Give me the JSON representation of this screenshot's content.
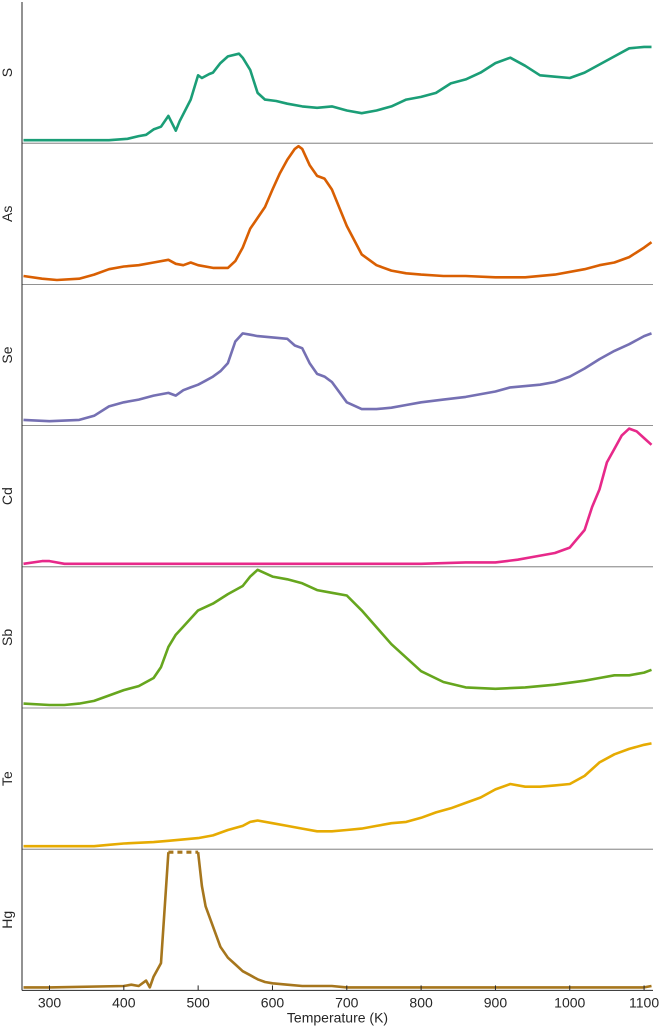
{
  "chart_data": {
    "type": "line",
    "xlabel": "Temperature (K)",
    "xlim": [
      263,
      1112
    ],
    "xticks": [
      300,
      400,
      500,
      600,
      700,
      800,
      900,
      1000,
      1100
    ],
    "xtick_labels": [
      "300",
      "400",
      "500",
      "600",
      "700",
      "800",
      "900",
      "1000",
      "1100"
    ],
    "normalized": true,
    "series": [
      {
        "name": "S",
        "color": "#1b9e77",
        "x": [
          265,
          300,
          380,
          405,
          420,
          430,
          440,
          450,
          460,
          470,
          475,
          490,
          500,
          505,
          515,
          520,
          530,
          540,
          555,
          560,
          570,
          580,
          590,
          605,
          620,
          640,
          660,
          680,
          700,
          720,
          740,
          760,
          780,
          800,
          820,
          840,
          860,
          880,
          900,
          920,
          940,
          960,
          980,
          1000,
          1020,
          1040,
          1060,
          1080,
          1100,
          1110
        ],
        "y": [
          0.0,
          0.0,
          0.0,
          0.01,
          0.03,
          0.04,
          0.08,
          0.1,
          0.18,
          0.07,
          0.14,
          0.3,
          0.48,
          0.46,
          0.49,
          0.5,
          0.57,
          0.62,
          0.64,
          0.61,
          0.52,
          0.35,
          0.3,
          0.29,
          0.27,
          0.25,
          0.24,
          0.25,
          0.22,
          0.2,
          0.22,
          0.25,
          0.3,
          0.32,
          0.35,
          0.42,
          0.45,
          0.5,
          0.57,
          0.61,
          0.55,
          0.48,
          0.47,
          0.46,
          0.5,
          0.56,
          0.62,
          0.68,
          0.69,
          0.69
        ]
      },
      {
        "name": "As",
        "color": "#d95f02",
        "x": [
          265,
          290,
          310,
          340,
          360,
          380,
          400,
          420,
          440,
          460,
          470,
          480,
          490,
          500,
          520,
          540,
          550,
          560,
          570,
          580,
          590,
          600,
          610,
          620,
          630,
          635,
          640,
          650,
          660,
          670,
          680,
          700,
          720,
          740,
          760,
          780,
          800,
          830,
          860,
          900,
          940,
          980,
          1020,
          1040,
          1060,
          1080,
          1100,
          1110
        ],
        "y": [
          0.04,
          0.02,
          0.01,
          0.02,
          0.05,
          0.09,
          0.11,
          0.12,
          0.14,
          0.16,
          0.13,
          0.12,
          0.14,
          0.12,
          0.1,
          0.1,
          0.15,
          0.25,
          0.39,
          0.47,
          0.55,
          0.68,
          0.8,
          0.9,
          0.98,
          1.0,
          0.98,
          0.86,
          0.78,
          0.76,
          0.68,
          0.41,
          0.2,
          0.12,
          0.08,
          0.06,
          0.05,
          0.04,
          0.04,
          0.03,
          0.03,
          0.05,
          0.09,
          0.12,
          0.14,
          0.18,
          0.25,
          0.29
        ]
      },
      {
        "name": "Se",
        "color": "#7570b3",
        "x": [
          265,
          300,
          340,
          360,
          380,
          400,
          420,
          440,
          460,
          470,
          480,
          490,
          500,
          510,
          520,
          530,
          540,
          550,
          560,
          570,
          580,
          600,
          620,
          630,
          640,
          650,
          660,
          670,
          680,
          700,
          720,
          740,
          760,
          780,
          800,
          830,
          860,
          900,
          920,
          940,
          960,
          980,
          1000,
          1020,
          1040,
          1060,
          1080,
          1100,
          1110
        ],
        "y": [
          0.02,
          0.01,
          0.02,
          0.05,
          0.12,
          0.15,
          0.17,
          0.2,
          0.22,
          0.2,
          0.24,
          0.26,
          0.28,
          0.31,
          0.34,
          0.38,
          0.44,
          0.6,
          0.66,
          0.65,
          0.64,
          0.63,
          0.62,
          0.57,
          0.55,
          0.44,
          0.36,
          0.34,
          0.3,
          0.15,
          0.1,
          0.1,
          0.11,
          0.13,
          0.15,
          0.17,
          0.19,
          0.23,
          0.26,
          0.27,
          0.28,
          0.3,
          0.34,
          0.4,
          0.47,
          0.53,
          0.58,
          0.64,
          0.66
        ]
      },
      {
        "name": "Cd",
        "color": "#e7298a",
        "x": [
          265,
          290,
          300,
          320,
          360,
          400,
          500,
          600,
          700,
          800,
          860,
          900,
          930,
          950,
          980,
          1000,
          1020,
          1030,
          1040,
          1050,
          1060,
          1070,
          1080,
          1090,
          1100,
          1110
        ],
        "y": [
          0.0,
          0.02,
          0.02,
          0.0,
          0.0,
          0.0,
          0.0,
          0.0,
          0.0,
          0.0,
          0.01,
          0.01,
          0.03,
          0.05,
          0.08,
          0.12,
          0.25,
          0.42,
          0.55,
          0.75,
          0.85,
          0.95,
          1.0,
          0.98,
          0.93,
          0.88
        ]
      },
      {
        "name": "Sb",
        "color": "#66a61e",
        "x": [
          265,
          300,
          320,
          340,
          360,
          380,
          400,
          420,
          440,
          450,
          460,
          470,
          480,
          500,
          520,
          540,
          560,
          570,
          580,
          600,
          620,
          640,
          660,
          680,
          700,
          720,
          760,
          800,
          830,
          860,
          900,
          940,
          980,
          1020,
          1040,
          1060,
          1080,
          1100,
          1110
        ],
        "y": [
          0.01,
          0.0,
          0.0,
          0.01,
          0.03,
          0.07,
          0.11,
          0.14,
          0.2,
          0.28,
          0.43,
          0.52,
          0.58,
          0.7,
          0.75,
          0.82,
          0.88,
          0.95,
          1.0,
          0.95,
          0.93,
          0.9,
          0.85,
          0.83,
          0.81,
          0.7,
          0.45,
          0.25,
          0.17,
          0.13,
          0.12,
          0.13,
          0.15,
          0.18,
          0.2,
          0.22,
          0.22,
          0.24,
          0.26
        ]
      },
      {
        "name": "Te",
        "color": "#e6ab02",
        "x": [
          265,
          300,
          360,
          380,
          400,
          440,
          460,
          480,
          500,
          520,
          540,
          560,
          570,
          580,
          600,
          620,
          640,
          660,
          680,
          700,
          720,
          740,
          760,
          780,
          800,
          820,
          840,
          860,
          880,
          900,
          920,
          940,
          960,
          980,
          1000,
          1020,
          1040,
          1060,
          1080,
          1100,
          1110
        ],
        "y": [
          0.0,
          0.0,
          0.0,
          0.01,
          0.02,
          0.03,
          0.04,
          0.05,
          0.06,
          0.08,
          0.12,
          0.15,
          0.18,
          0.19,
          0.17,
          0.15,
          0.13,
          0.11,
          0.11,
          0.12,
          0.13,
          0.15,
          0.17,
          0.18,
          0.21,
          0.25,
          0.28,
          0.32,
          0.36,
          0.42,
          0.46,
          0.44,
          0.44,
          0.45,
          0.46,
          0.52,
          0.62,
          0.68,
          0.72,
          0.75,
          0.76
        ]
      },
      {
        "name": "Hg",
        "color": "#a6761d",
        "x": [
          265,
          300,
          400,
          410,
          420,
          430,
          435,
          440,
          450,
          460,
          500,
          505,
          510,
          520,
          530,
          540,
          550,
          560,
          570,
          580,
          590,
          600,
          620,
          640,
          680,
          700,
          800,
          900,
          1000,
          1100,
          1110
        ],
        "y": [
          0.0,
          0.0,
          0.01,
          0.02,
          0.01,
          0.05,
          0.0,
          0.08,
          0.18,
          1.0,
          1.0,
          0.75,
          0.6,
          0.45,
          0.3,
          0.22,
          0.17,
          0.12,
          0.09,
          0.06,
          0.04,
          0.03,
          0.02,
          0.01,
          0.01,
          0.0,
          0.0,
          0.0,
          0.0,
          0.0,
          0.01
        ],
        "dashed_x": [
          460,
          500
        ]
      }
    ]
  }
}
